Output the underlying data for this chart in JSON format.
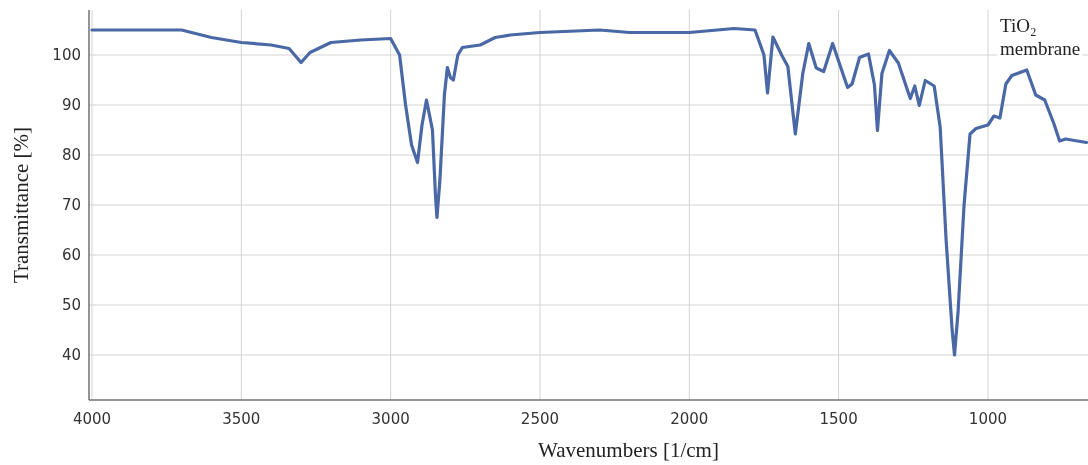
{
  "chart_data": {
    "type": "line",
    "xlabel": "Wavenumbers [1/cm]",
    "ylabel": "Transmittance [%]",
    "annotations": [
      "TiO₂ membrane"
    ],
    "xlim": [
      4010,
      665
    ],
    "xticks": [
      4000,
      3500,
      3000,
      2500,
      2000,
      1500,
      1000
    ],
    "ylim": [
      31,
      109
    ],
    "yticks": [
      40,
      50,
      60,
      70,
      80,
      90,
      100
    ],
    "grid": true,
    "series": [
      {
        "color": "#4a68a6",
        "x": [
          4000,
          3700,
          3600,
          3500,
          3400,
          3340,
          3300,
          3270,
          3200,
          3100,
          3000,
          2970,
          2950,
          2930,
          2910,
          2895,
          2880,
          2860,
          2850,
          2845,
          2835,
          2820,
          2810,
          2800,
          2790,
          2775,
          2760,
          2700,
          2650,
          2600,
          2500,
          2300,
          2200,
          2100,
          2000,
          1850,
          1780,
          1750,
          1738,
          1720,
          1690,
          1670,
          1645,
          1620,
          1600,
          1575,
          1550,
          1520,
          1490,
          1470,
          1455,
          1430,
          1400,
          1380,
          1370,
          1355,
          1330,
          1300,
          1260,
          1245,
          1230,
          1210,
          1180,
          1160,
          1140,
          1120,
          1112,
          1100,
          1080,
          1060,
          1040,
          1000,
          980,
          960,
          940,
          920,
          870,
          840,
          810,
          780,
          760,
          740,
          670
        ],
        "values": [
          105,
          105,
          103.5,
          102.5,
          102,
          101.3,
          98.5,
          100.5,
          102.5,
          103,
          103.3,
          100,
          90,
          82,
          78.5,
          86,
          91,
          85,
          72,
          67.5,
          75,
          92,
          97.5,
          95.5,
          95,
          100,
          101.5,
          102,
          103.5,
          104,
          104.5,
          105,
          104.5,
          104.5,
          104.5,
          105.3,
          105,
          100,
          92.4,
          103.6,
          99.9,
          97.7,
          84.2,
          96.3,
          102.3,
          97.4,
          96.7,
          102.3,
          97,
          93.5,
          94.2,
          99.5,
          100.2,
          94,
          84.9,
          96.3,
          100.9,
          98.4,
          91.3,
          93.8,
          89.9,
          94.9,
          93.8,
          85.6,
          62.9,
          45.1,
          40,
          48.7,
          70,
          84.2,
          85.3,
          86,
          87.8,
          87.4,
          94.2,
          95.9,
          97,
          92,
          91,
          86.4,
          82.8,
          83.2,
          82.5
        ]
      }
    ]
  }
}
